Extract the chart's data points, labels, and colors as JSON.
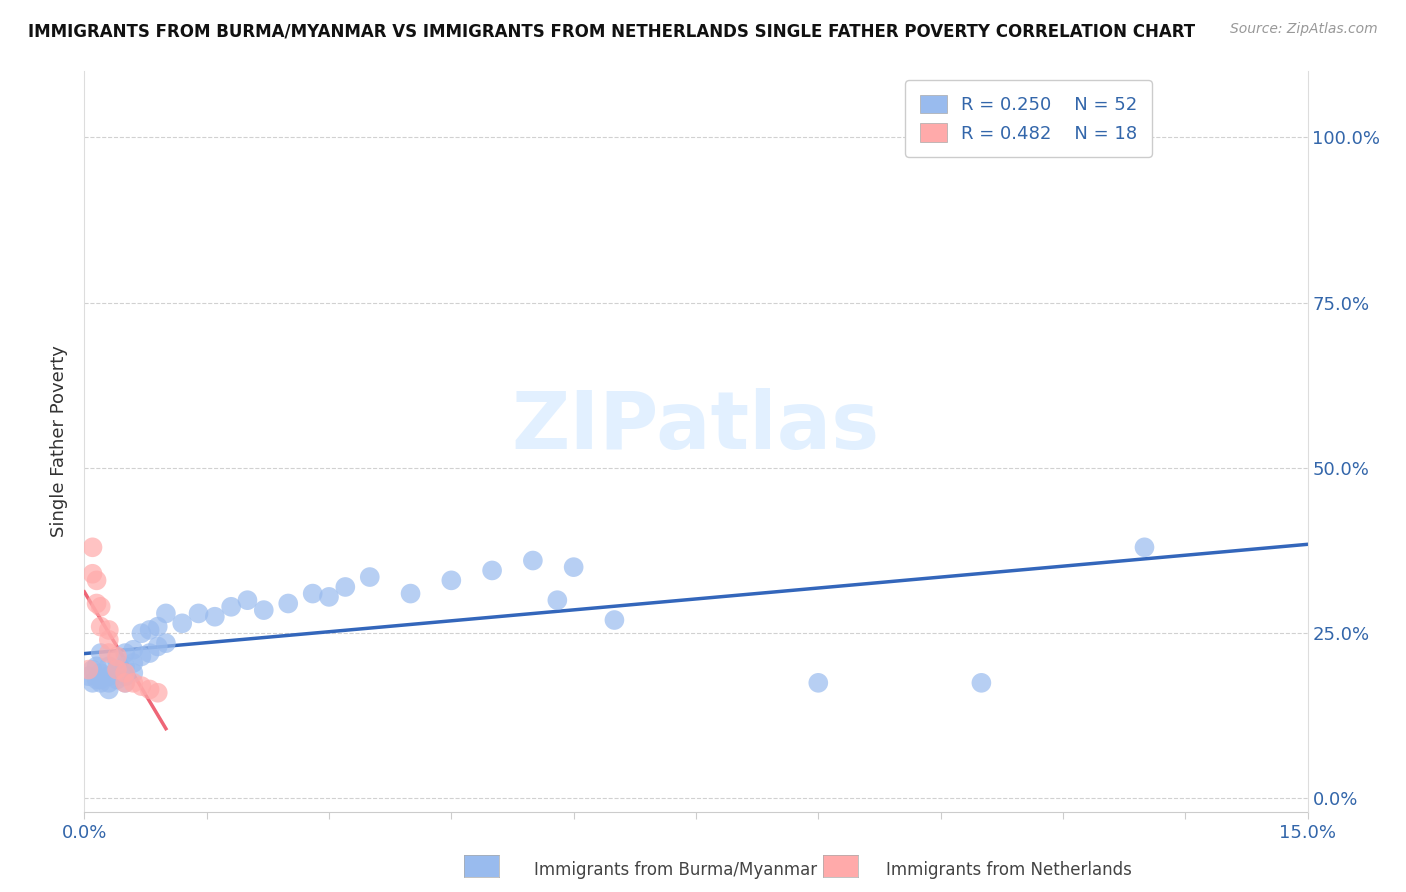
{
  "title": "IMMIGRANTS FROM BURMA/MYANMAR VS IMMIGRANTS FROM NETHERLANDS SINGLE FATHER POVERTY CORRELATION CHART",
  "source": "Source: ZipAtlas.com",
  "ylabel": "Single Father Poverty",
  "xlim": [
    0.0,
    0.15
  ],
  "ylim": [
    -0.02,
    1.1
  ],
  "blue_color": "#99BBEE",
  "pink_color": "#FFAAAA",
  "blue_line_color": "#3366BB",
  "pink_line_color": "#EE6677",
  "pink_dash_color": "#FFBBBB",
  "watermark": "ZIPatlas",
  "blue_x": [
    0.0005,
    0.001,
    0.001,
    0.0015,
    0.0015,
    0.002,
    0.002,
    0.002,
    0.002,
    0.003,
    0.003,
    0.003,
    0.003,
    0.004,
    0.004,
    0.004,
    0.005,
    0.005,
    0.005,
    0.005,
    0.006,
    0.006,
    0.006,
    0.007,
    0.007,
    0.008,
    0.008,
    0.009,
    0.009,
    0.01,
    0.01,
    0.012,
    0.014,
    0.016,
    0.018,
    0.02,
    0.022,
    0.025,
    0.028,
    0.03,
    0.032,
    0.035,
    0.04,
    0.045,
    0.05,
    0.055,
    0.058,
    0.06,
    0.065,
    0.09,
    0.11,
    0.13
  ],
  "blue_y": [
    0.185,
    0.195,
    0.175,
    0.2,
    0.18,
    0.22,
    0.19,
    0.18,
    0.175,
    0.2,
    0.185,
    0.175,
    0.165,
    0.21,
    0.195,
    0.18,
    0.22,
    0.2,
    0.185,
    0.175,
    0.225,
    0.205,
    0.19,
    0.25,
    0.215,
    0.255,
    0.22,
    0.26,
    0.23,
    0.28,
    0.235,
    0.265,
    0.28,
    0.275,
    0.29,
    0.3,
    0.285,
    0.295,
    0.31,
    0.305,
    0.32,
    0.335,
    0.31,
    0.33,
    0.345,
    0.36,
    0.3,
    0.35,
    0.27,
    0.175,
    0.175,
    0.38
  ],
  "pink_x": [
    0.0005,
    0.001,
    0.001,
    0.0015,
    0.0015,
    0.002,
    0.002,
    0.003,
    0.003,
    0.003,
    0.004,
    0.004,
    0.005,
    0.005,
    0.006,
    0.007,
    0.008,
    0.009
  ],
  "pink_y": [
    0.195,
    0.38,
    0.34,
    0.33,
    0.295,
    0.29,
    0.26,
    0.255,
    0.24,
    0.22,
    0.215,
    0.195,
    0.19,
    0.175,
    0.175,
    0.17,
    0.165,
    0.16
  ]
}
